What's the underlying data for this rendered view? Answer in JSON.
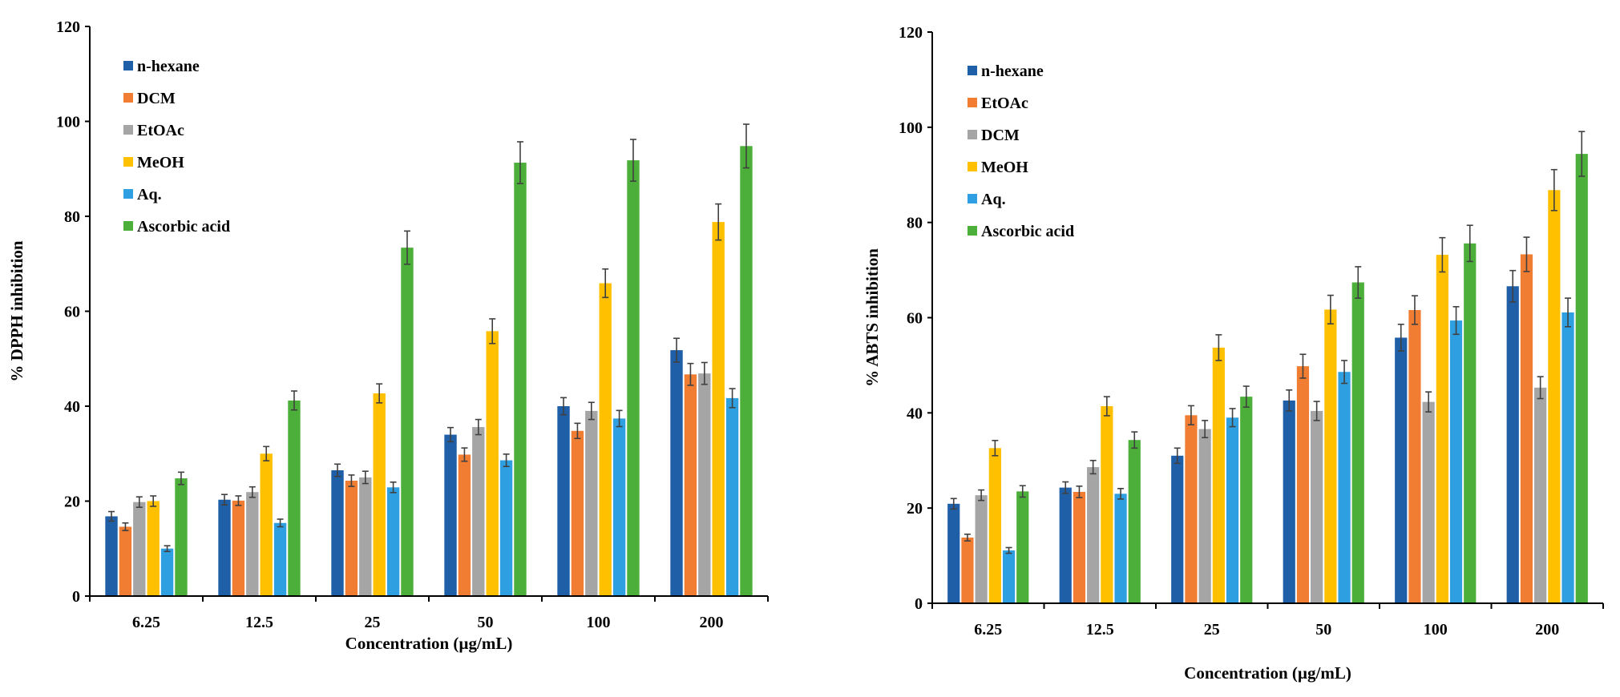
{
  "chart_data": [
    {
      "type": "bar",
      "title": "",
      "xlabel": "Concentration (µg/mL)",
      "ylabel": "% DPPH inhibition",
      "ylim": [
        0,
        120
      ],
      "yticks": [
        "0",
        "20",
        "40",
        "60",
        "80",
        "100",
        "120"
      ],
      "categories": [
        "6.25",
        "12.5",
        "25",
        "50",
        "100",
        "200"
      ],
      "legend_position": "top-left",
      "series": [
        {
          "name": "n-hexane",
          "color": "#1F5FA8",
          "values": [
            16.8,
            20.3,
            26.5,
            34.0,
            40.0,
            51.8
          ],
          "errors": [
            1.0,
            1.1,
            1.3,
            1.5,
            1.8,
            2.5
          ]
        },
        {
          "name": "DCM",
          "color": "#F07D32",
          "values": [
            14.6,
            20.1,
            24.3,
            29.8,
            34.8,
            46.7
          ],
          "errors": [
            0.8,
            1.0,
            1.2,
            1.4,
            1.6,
            2.3
          ]
        },
        {
          "name": "EtOAc",
          "color": "#A5A5A5",
          "values": [
            19.8,
            21.9,
            25.0,
            35.6,
            39.0,
            46.9
          ],
          "errors": [
            1.1,
            1.1,
            1.3,
            1.6,
            1.8,
            2.3
          ]
        },
        {
          "name": "MeOH",
          "color": "#FFC000",
          "values": [
            20.0,
            30.0,
            42.7,
            55.8,
            65.9,
            78.8
          ],
          "errors": [
            1.1,
            1.5,
            2.0,
            2.6,
            3.0,
            3.8
          ]
        },
        {
          "name": "Aq.",
          "color": "#2E9FE0",
          "values": [
            10.0,
            15.4,
            22.9,
            28.6,
            37.4,
            41.7
          ],
          "errors": [
            0.6,
            0.8,
            1.1,
            1.3,
            1.7,
            2.0
          ]
        },
        {
          "name": "Ascorbic acid",
          "color": "#4CAF3A",
          "values": [
            24.8,
            41.2,
            73.4,
            91.3,
            91.8,
            94.8
          ],
          "errors": [
            1.3,
            2.0,
            3.5,
            4.4,
            4.4,
            4.6
          ]
        }
      ]
    },
    {
      "type": "bar",
      "title": "",
      "xlabel": "Concentration (µg/mL)",
      "ylabel": "% ABTS inhibition",
      "ylim": [
        0,
        120
      ],
      "yticks": [
        "0",
        "20",
        "40",
        "60",
        "80",
        "100",
        "120"
      ],
      "categories": [
        "6.25",
        "12.5",
        "25",
        "50",
        "100",
        "200"
      ],
      "legend_position": "top-left",
      "series": [
        {
          "name": "n-hexane",
          "color": "#1F5FA8",
          "values": [
            20.9,
            24.3,
            31.0,
            42.6,
            55.8,
            66.6
          ],
          "errors": [
            1.1,
            1.2,
            1.6,
            2.2,
            2.8,
            3.3
          ]
        },
        {
          "name": "EtOAc",
          "color": "#F07D32",
          "values": [
            13.8,
            23.4,
            39.5,
            49.8,
            61.6,
            73.3
          ],
          "errors": [
            0.7,
            1.2,
            2.0,
            2.5,
            3.0,
            3.6
          ]
        },
        {
          "name": "DCM",
          "color": "#A5A5A5",
          "values": [
            22.7,
            28.6,
            36.6,
            40.4,
            42.3,
            45.3
          ],
          "errors": [
            1.1,
            1.4,
            1.8,
            2.0,
            2.1,
            2.3
          ]
        },
        {
          "name": "MeOH",
          "color": "#FFC000",
          "values": [
            32.6,
            41.4,
            53.7,
            61.7,
            73.2,
            86.8
          ],
          "errors": [
            1.6,
            2.0,
            2.7,
            3.0,
            3.6,
            4.3
          ]
        },
        {
          "name": "Aq.",
          "color": "#2E9FE0",
          "values": [
            11.1,
            23.0,
            39.0,
            48.6,
            59.4,
            61.1
          ],
          "errors": [
            0.6,
            1.1,
            1.9,
            2.4,
            2.9,
            3.0
          ]
        },
        {
          "name": "Ascorbic acid",
          "color": "#4CAF3A",
          "values": [
            23.5,
            34.3,
            43.4,
            67.4,
            75.6,
            94.4
          ],
          "errors": [
            1.2,
            1.7,
            2.2,
            3.3,
            3.8,
            4.7
          ]
        }
      ]
    }
  ]
}
